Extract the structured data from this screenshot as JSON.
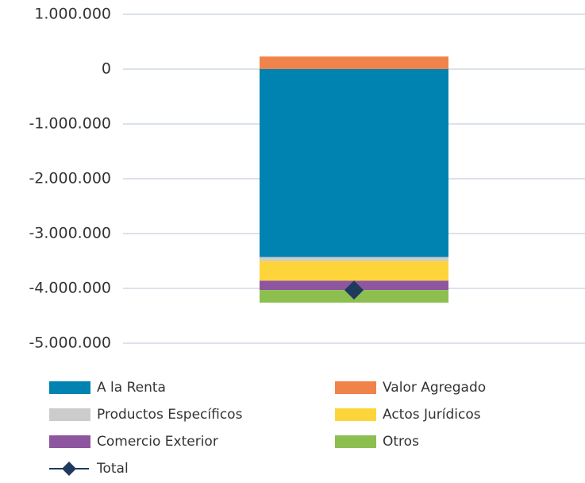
{
  "chart_data": {
    "type": "stacked_bar",
    "categories": [
      null
    ],
    "series": [
      {
        "name": "A la Renta",
        "color": "#0083b0",
        "values": [
          -3430000
        ]
      },
      {
        "name": "Valor Agregado",
        "color": "#f0834a",
        "values": [
          230000
        ]
      },
      {
        "name": "Productos Específicos",
        "color": "#cccccc",
        "values": [
          -70000
        ]
      },
      {
        "name": "Actos Jurídicos",
        "color": "#fdd53b",
        "values": [
          -360000
        ]
      },
      {
        "name": "Comercio Exterior",
        "color": "#8e569e",
        "values": [
          -170000
        ]
      },
      {
        "name": "Otros",
        "color": "#8dbf50",
        "values": [
          -230000
        ]
      }
    ],
    "total": {
      "name": "Total",
      "color": "#1f3a5c",
      "values": [
        -4030000
      ]
    },
    "ylim": [
      -5000000,
      1000000
    ],
    "yticks": [
      {
        "value": -5000000,
        "label": "-5.000.000"
      },
      {
        "value": -4000000,
        "label": "-4.000.000"
      },
      {
        "value": -3000000,
        "label": "-3.000.000"
      },
      {
        "value": -2000000,
        "label": "-2.000.000"
      },
      {
        "value": -1000000,
        "label": "-1.000.000"
      },
      0,
      {
        "value": 1000000,
        "label": "1.000.000"
      }
    ],
    "grid": true,
    "legend": "bottom"
  }
}
